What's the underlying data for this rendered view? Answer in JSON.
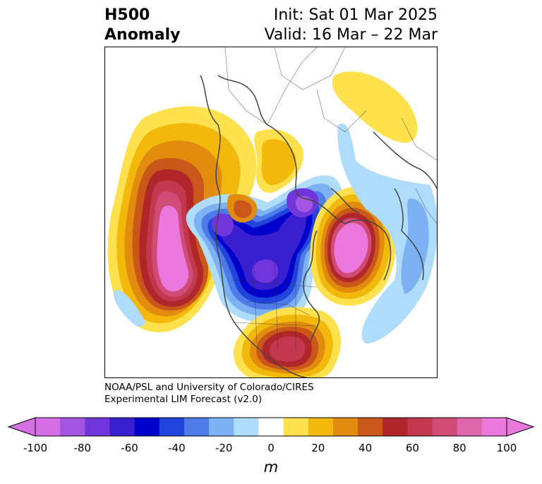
{
  "title": {
    "left_line1": "H500",
    "left_line2": "Anomaly",
    "right_line1": "Init: Sat 01 Mar 2025",
    "right_line2": "Valid: 16 Mar – 22 Mar"
  },
  "credit": {
    "line1": "NOAA/PSL and University of Colorado/CIRES",
    "line2": "Experimental LIM Forecast (v2.0)"
  },
  "colorbar": {
    "unit": "m",
    "ticks": [
      "-100",
      "-80",
      "-60",
      "-40",
      "-20",
      "0",
      "20",
      "40",
      "60",
      "80",
      "100"
    ],
    "colors": [
      "#d66fe6",
      "#a255e0",
      "#7036dc",
      "#3a1fd0",
      "#0000cc",
      "#2145dc",
      "#4f7be8",
      "#7cb2f4",
      "#b0dcfc",
      "#ffffff",
      "#ffe14d",
      "#f2b90c",
      "#e18c0f",
      "#c95719",
      "#b0262a",
      "#c2384f",
      "#d04c77",
      "#df68ad",
      "#eb78dc"
    ],
    "extend_low": "#d66fe6",
    "extend_high": "#eb78dc"
  },
  "map": {
    "projection": "polar-stereographic",
    "field": "500 hPa geopotential height anomaly"
  }
}
